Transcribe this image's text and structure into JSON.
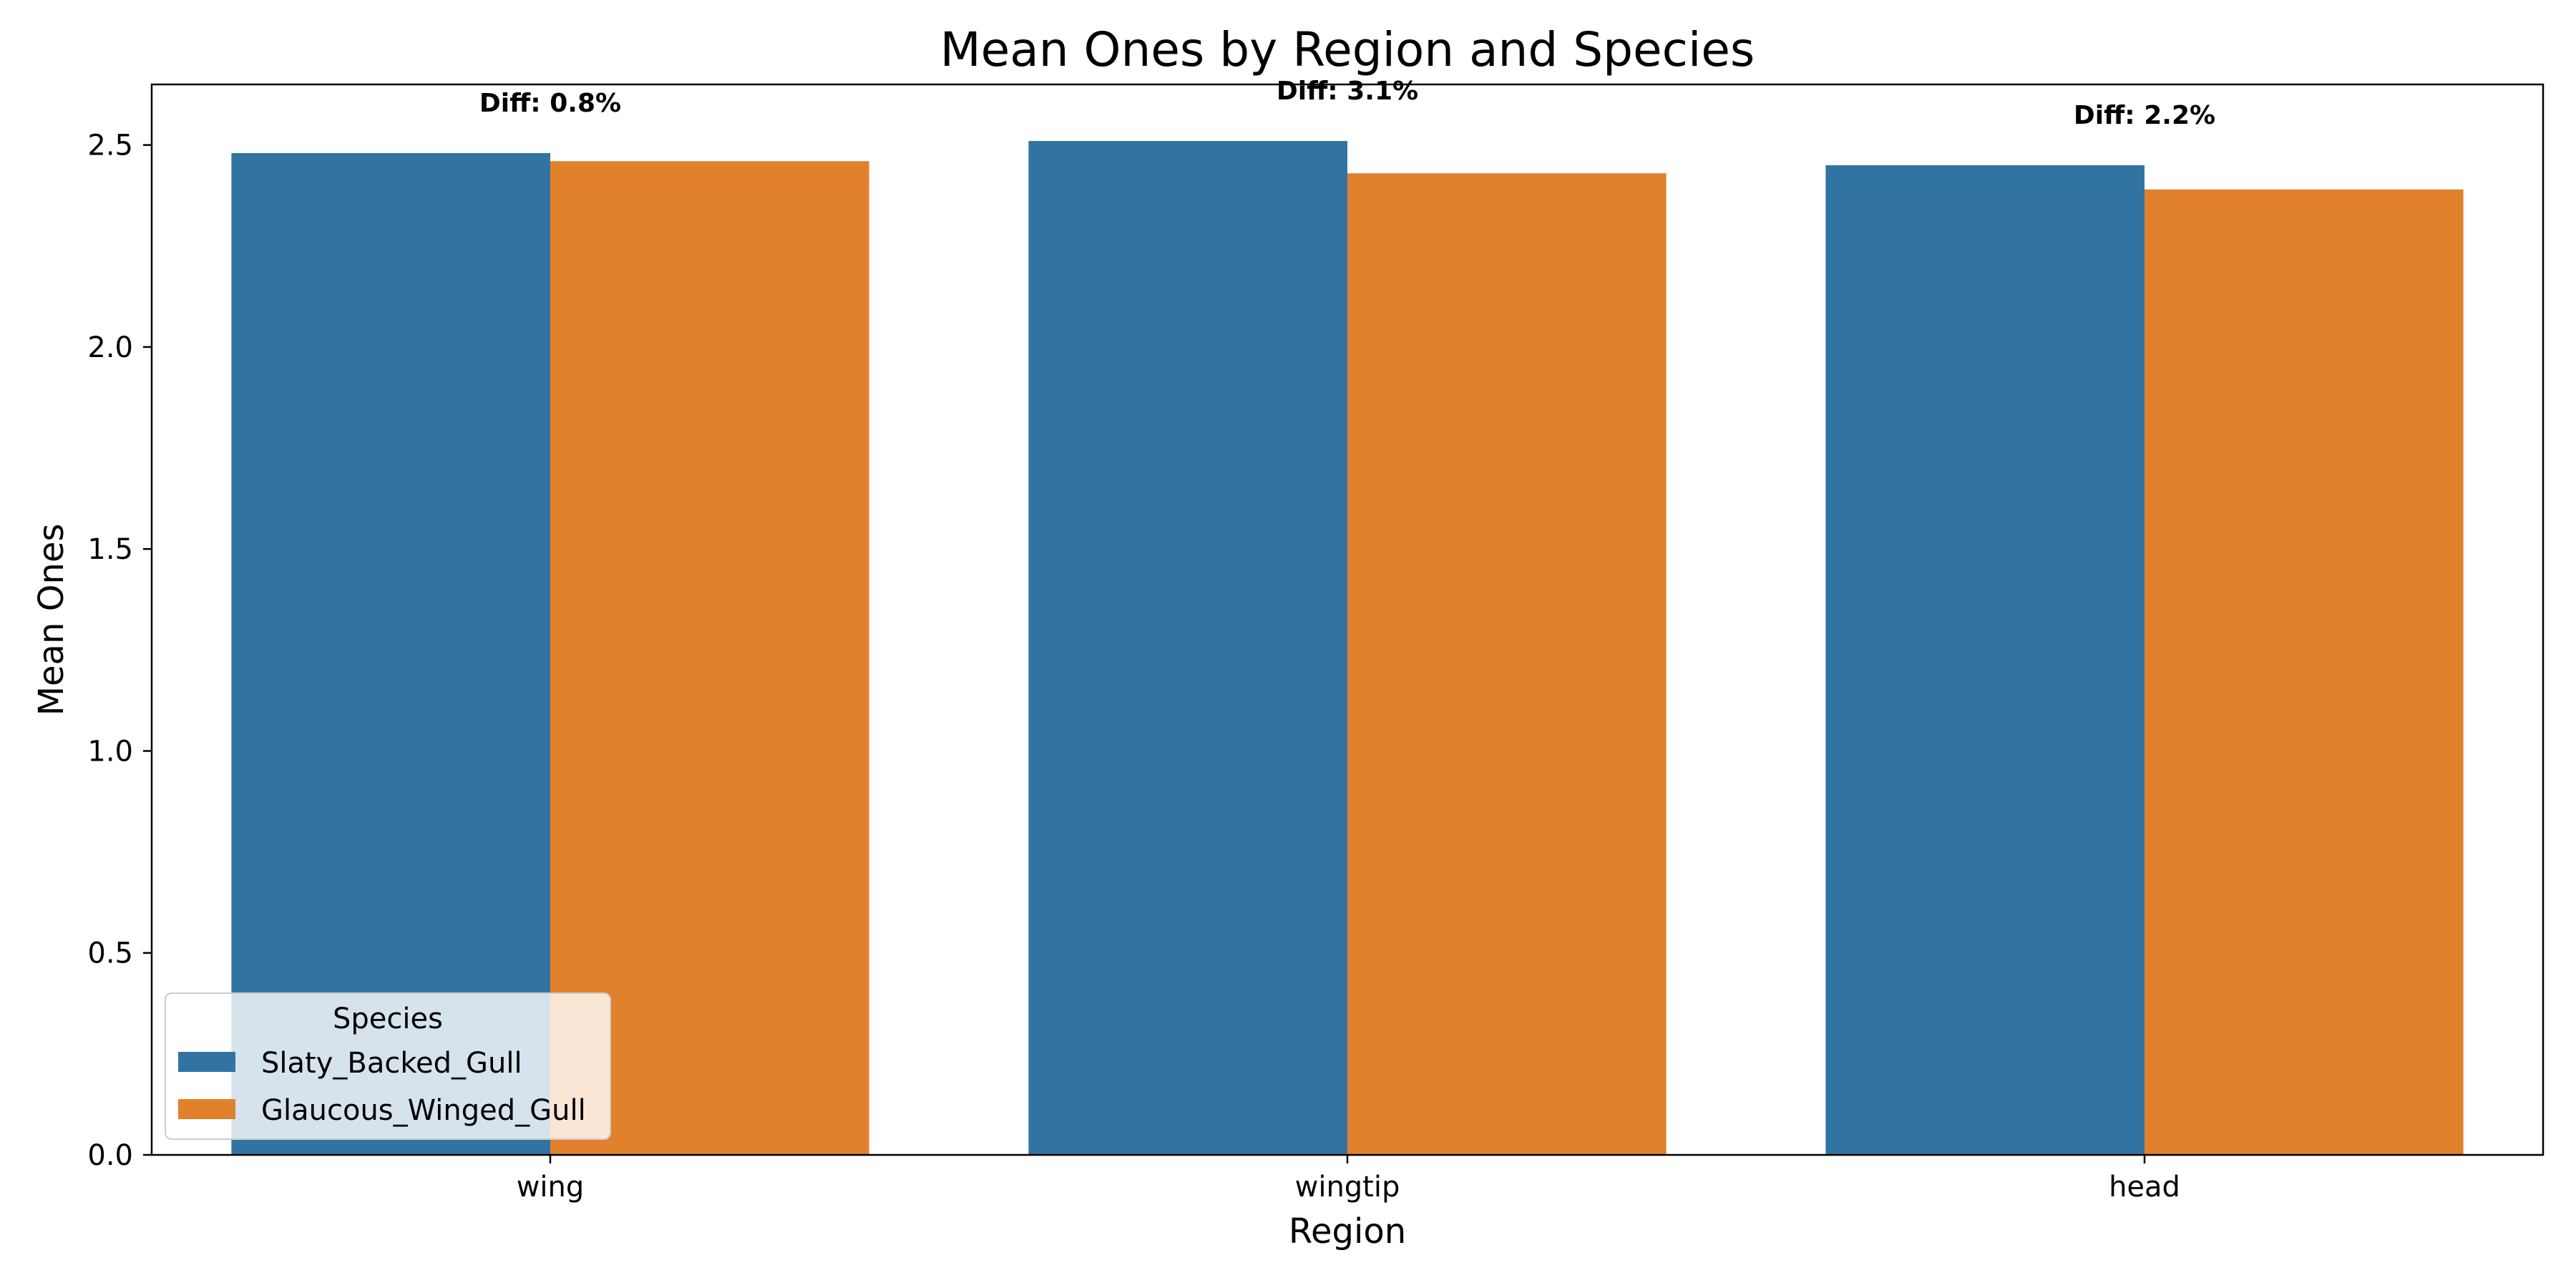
{
  "chart_data": {
    "type": "bar",
    "title": "Mean Ones by Region and Species",
    "xlabel": "Region",
    "ylabel": "Mean Ones",
    "categories": [
      "wing",
      "wingtip",
      "head"
    ],
    "ylim": [
      0,
      2.65
    ],
    "yticks": [
      0.0,
      0.5,
      1.0,
      1.5,
      2.0,
      2.5
    ],
    "ytick_labels": [
      "0.0",
      "0.5",
      "1.0",
      "1.5",
      "2.0",
      "2.5"
    ],
    "series": [
      {
        "name": "Slaty_Backed_Gull",
        "color": "#3274a1",
        "values": [
          2.48,
          2.51,
          2.45
        ]
      },
      {
        "name": "Glaucous_Winged_Gull",
        "color": "#e1812c",
        "values": [
          2.46,
          2.43,
          2.39
        ]
      }
    ],
    "annotations": [
      "Diff: 0.8%",
      "Diff: 3.1%",
      "Diff: 2.2%"
    ],
    "legend": {
      "title": "Species",
      "position": "lower-left"
    },
    "grid": false
  }
}
